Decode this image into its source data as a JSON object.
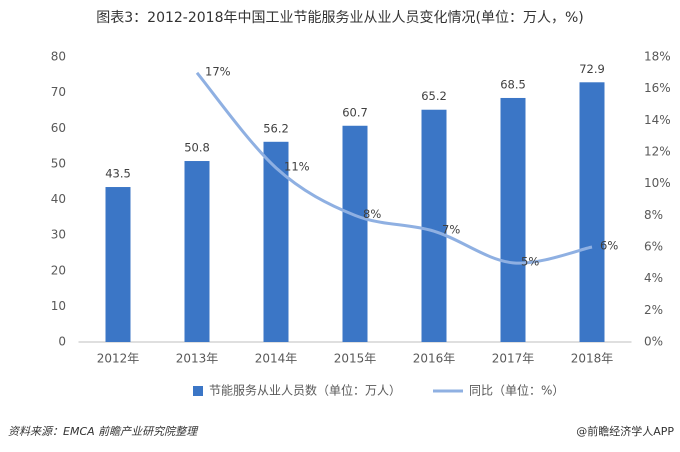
{
  "chart_data": {
    "type": "bar-line",
    "title": "图表3：2012-2018年中国工业节能服务业从业人员变化情况(单位：万人，%)",
    "categories": [
      "2012年",
      "2013年",
      "2014年",
      "2015年",
      "2016年",
      "2017年",
      "2018年"
    ],
    "series": [
      {
        "name": "节能服务从业人员数（单位：万人）",
        "type": "bar",
        "color": "#3b76c6",
        "values": [
          43.5,
          50.8,
          56.2,
          60.7,
          65.2,
          68.5,
          72.9
        ]
      },
      {
        "name": "同比（单位：%）",
        "type": "line",
        "axis": "y2",
        "color": "#8fb0e2",
        "values": [
          null,
          17,
          11,
          8,
          7,
          5,
          6
        ],
        "value_labels": [
          null,
          "17%",
          "11%",
          "8%",
          "7%",
          "5%",
          "6%"
        ]
      }
    ],
    "ylim": [
      0,
      80
    ],
    "yticks": [
      0,
      10,
      20,
      30,
      40,
      50,
      60,
      70,
      80
    ],
    "y2lim": [
      0,
      18
    ],
    "y2ticks": [
      {
        "value": 0,
        "label": "0%"
      },
      {
        "value": 2,
        "label": "2%"
      },
      {
        "value": 4,
        "label": "4%"
      },
      {
        "value": 6,
        "label": "6%"
      },
      {
        "value": 8,
        "label": "8%"
      },
      {
        "value": 10,
        "label": "10%"
      },
      {
        "value": 12,
        "label": "12%"
      },
      {
        "value": 14,
        "label": "14%"
      },
      {
        "value": 16,
        "label": "16%"
      },
      {
        "value": 18,
        "label": "18%"
      }
    ],
    "legend": "bottom",
    "source": "资料来源：EMCA 前瞻产业研究院整理",
    "credit": "@前瞻经济学人APP"
  }
}
